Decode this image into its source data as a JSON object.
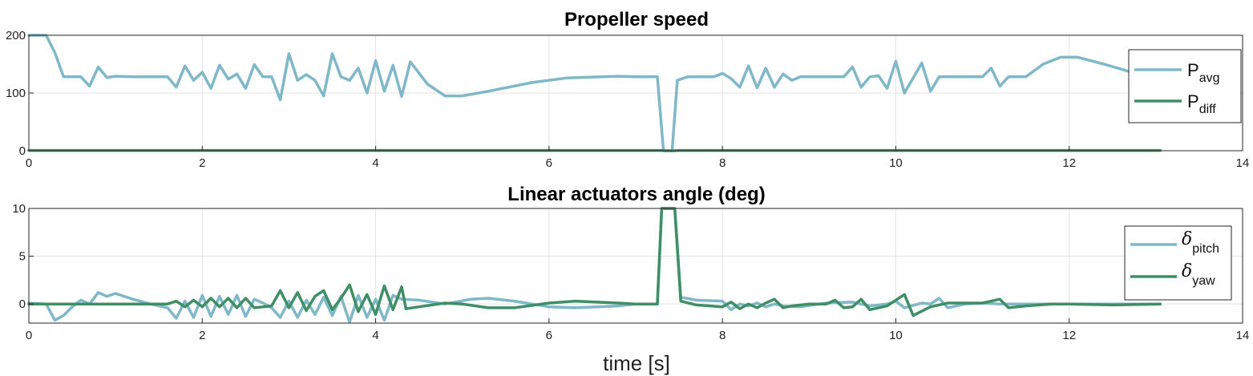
{
  "colors": {
    "series_light": "#7fb8c9",
    "series_dark": "#3f8f66",
    "grid": "#e3e3e3",
    "axes": "#262626"
  },
  "xlabel": "time [s]",
  "chart_data": [
    {
      "type": "line",
      "title": "Propeller speed",
      "xlim": [
        0,
        14
      ],
      "ylim": [
        0,
        200
      ],
      "xticks": [
        0,
        2,
        4,
        6,
        8,
        10,
        12,
        14
      ],
      "yticks": [
        0,
        100,
        200
      ],
      "grid": true,
      "legend_position": "right",
      "series": [
        {
          "name": "P",
          "subscript": "avg",
          "color": "#7fb8c9",
          "points": [
            [
              0,
              200
            ],
            [
              0.2,
              200
            ],
            [
              0.3,
              170
            ],
            [
              0.4,
              128
            ],
            [
              0.6,
              128
            ],
            [
              0.7,
              112
            ],
            [
              0.8,
              145
            ],
            [
              0.9,
              127
            ],
            [
              1.0,
              129
            ],
            [
              1.2,
              128
            ],
            [
              1.6,
              128
            ],
            [
              1.7,
              110
            ],
            [
              1.8,
              147
            ],
            [
              1.9,
              122
            ],
            [
              2.0,
              136
            ],
            [
              2.1,
              108
            ],
            [
              2.2,
              148
            ],
            [
              2.3,
              124
            ],
            [
              2.4,
              133
            ],
            [
              2.5,
              108
            ],
            [
              2.6,
              149
            ],
            [
              2.7,
              128
            ],
            [
              2.8,
              128
            ],
            [
              2.9,
              88
            ],
            [
              3.0,
              168
            ],
            [
              3.1,
              122
            ],
            [
              3.2,
              132
            ],
            [
              3.3,
              122
            ],
            [
              3.4,
              95
            ],
            [
              3.5,
              168
            ],
            [
              3.6,
              128
            ],
            [
              3.7,
              122
            ],
            [
              3.8,
              143
            ],
            [
              3.9,
              100
            ],
            [
              4.0,
              156
            ],
            [
              4.1,
              103
            ],
            [
              4.2,
              148
            ],
            [
              4.3,
              94
            ],
            [
              4.4,
              154
            ],
            [
              4.6,
              115
            ],
            [
              4.8,
              95
            ],
            [
              5.0,
              95
            ],
            [
              5.3,
              103
            ],
            [
              5.8,
              118
            ],
            [
              6.2,
              126
            ],
            [
              6.8,
              129
            ],
            [
              7.0,
              128
            ],
            [
              7.25,
              128
            ],
            [
              7.32,
              0
            ],
            [
              7.42,
              0
            ],
            [
              7.48,
              122
            ],
            [
              7.6,
              128
            ],
            [
              7.9,
              128
            ],
            [
              8.0,
              134
            ],
            [
              8.1,
              125
            ],
            [
              8.2,
              110
            ],
            [
              8.3,
              147
            ],
            [
              8.4,
              109
            ],
            [
              8.5,
              143
            ],
            [
              8.6,
              110
            ],
            [
              8.7,
              133
            ],
            [
              8.8,
              122
            ],
            [
              8.9,
              128
            ],
            [
              9.0,
              128
            ],
            [
              9.4,
              128
            ],
            [
              9.5,
              145
            ],
            [
              9.6,
              110
            ],
            [
              9.7,
              128
            ],
            [
              9.8,
              130
            ],
            [
              9.9,
              108
            ],
            [
              10.0,
              155
            ],
            [
              10.1,
              100
            ],
            [
              10.3,
              152
            ],
            [
              10.4,
              103
            ],
            [
              10.5,
              128
            ],
            [
              11.0,
              128
            ],
            [
              11.1,
              143
            ],
            [
              11.2,
              112
            ],
            [
              11.3,
              128
            ],
            [
              11.5,
              128
            ],
            [
              11.7,
              150
            ],
            [
              11.9,
              162
            ],
            [
              12.1,
              162
            ],
            [
              12.4,
              150
            ],
            [
              12.7,
              137
            ],
            [
              12.9,
              130
            ],
            [
              13.05,
              128
            ]
          ]
        },
        {
          "name": "P",
          "subscript": "diff",
          "color": "#3f8f66",
          "points": [
            [
              0,
              0.5
            ],
            [
              7.3,
              0.5
            ],
            [
              7.35,
              0
            ],
            [
              7.45,
              0
            ],
            [
              7.5,
              0.5
            ],
            [
              13.05,
              0.5
            ]
          ]
        }
      ]
    },
    {
      "type": "line",
      "title": "Linear actuators angle (deg)",
      "xlim": [
        0,
        14
      ],
      "ylim": [
        -2,
        10
      ],
      "xticks": [
        0,
        2,
        4,
        6,
        8,
        10,
        12,
        14
      ],
      "yticks": [
        0,
        5,
        10
      ],
      "grid": true,
      "legend_position": "right",
      "series": [
        {
          "name": "δ",
          "subscript": "pitch",
          "color": "#7fb8c9",
          "points": [
            [
              0,
              0.1
            ],
            [
              0.2,
              0
            ],
            [
              0.3,
              -1.7
            ],
            [
              0.4,
              -1.2
            ],
            [
              0.5,
              -0.3
            ],
            [
              0.6,
              0.4
            ],
            [
              0.7,
              0
            ],
            [
              0.8,
              1.2
            ],
            [
              0.9,
              0.8
            ],
            [
              1.0,
              1.1
            ],
            [
              1.2,
              0.5
            ],
            [
              1.4,
              0
            ],
            [
              1.6,
              -0.4
            ],
            [
              1.7,
              -1.5
            ],
            [
              1.8,
              0.3
            ],
            [
              1.9,
              -1.4
            ],
            [
              2.0,
              0.9
            ],
            [
              2.1,
              -1.3
            ],
            [
              2.2,
              0.8
            ],
            [
              2.3,
              -1.1
            ],
            [
              2.4,
              0.9
            ],
            [
              2.5,
              -1.3
            ],
            [
              2.6,
              0.5
            ],
            [
              2.7,
              0.1
            ],
            [
              2.8,
              -0.4
            ],
            [
              2.9,
              -1.4
            ],
            [
              3.0,
              0.3
            ],
            [
              3.1,
              -1.4
            ],
            [
              3.2,
              0.4
            ],
            [
              3.3,
              -1.1
            ],
            [
              3.4,
              0.7
            ],
            [
              3.5,
              -1.2
            ],
            [
              3.6,
              0.8
            ],
            [
              3.7,
              -1.9
            ],
            [
              3.8,
              0.9
            ],
            [
              3.9,
              -1.4
            ],
            [
              4.0,
              0.5
            ],
            [
              4.1,
              -1.7
            ],
            [
              4.2,
              0.9
            ],
            [
              4.3,
              0.5
            ],
            [
              4.5,
              0.4
            ],
            [
              4.8,
              0
            ],
            [
              5.1,
              0.5
            ],
            [
              5.3,
              0.6
            ],
            [
              5.6,
              0.3
            ],
            [
              6.0,
              -0.3
            ],
            [
              6.3,
              -0.4
            ],
            [
              6.8,
              -0.2
            ],
            [
              7.0,
              0
            ],
            [
              7.25,
              0
            ],
            [
              7.3,
              10
            ],
            [
              7.45,
              10
            ],
            [
              7.52,
              0.7
            ],
            [
              7.7,
              0.4
            ],
            [
              8.0,
              0.3
            ],
            [
              8.1,
              -0.6
            ],
            [
              8.2,
              0
            ],
            [
              8.3,
              -0.2
            ],
            [
              8.4,
              0.1
            ],
            [
              8.5,
              -0.3
            ],
            [
              8.6,
              0
            ],
            [
              8.7,
              -0.2
            ],
            [
              8.9,
              -0.3
            ],
            [
              9.2,
              0.1
            ],
            [
              9.5,
              0.2
            ],
            [
              9.7,
              -0.2
            ],
            [
              9.9,
              0
            ],
            [
              10.0,
              0.3
            ],
            [
              10.1,
              -0.4
            ],
            [
              10.3,
              0.1
            ],
            [
              10.4,
              0
            ],
            [
              10.5,
              0.6
            ],
            [
              10.6,
              -0.4
            ],
            [
              10.8,
              0
            ],
            [
              11.0,
              0.1
            ],
            [
              11.2,
              0
            ],
            [
              11.5,
              0
            ],
            [
              12.0,
              0
            ],
            [
              13.05,
              0
            ]
          ]
        },
        {
          "name": "δ",
          "subscript": "yaw",
          "color": "#3f8f66",
          "points": [
            [
              0,
              0
            ],
            [
              1.6,
              0
            ],
            [
              1.7,
              0.3
            ],
            [
              1.8,
              -0.3
            ],
            [
              1.9,
              0.4
            ],
            [
              2.0,
              -0.3
            ],
            [
              2.1,
              0.6
            ],
            [
              2.2,
              -0.3
            ],
            [
              2.3,
              0.6
            ],
            [
              2.4,
              -0.4
            ],
            [
              2.5,
              0.6
            ],
            [
              2.6,
              -0.4
            ],
            [
              2.8,
              -0.2
            ],
            [
              2.9,
              1.4
            ],
            [
              3.0,
              -0.4
            ],
            [
              3.1,
              1.2
            ],
            [
              3.2,
              -0.7
            ],
            [
              3.3,
              0.8
            ],
            [
              3.4,
              1.4
            ],
            [
              3.5,
              -0.6
            ],
            [
              3.6,
              0.6
            ],
            [
              3.7,
              2.0
            ],
            [
              3.8,
              -0.8
            ],
            [
              3.9,
              1.0
            ],
            [
              4.0,
              -1.1
            ],
            [
              4.1,
              1.9
            ],
            [
              4.2,
              -0.6
            ],
            [
              4.3,
              1.8
            ],
            [
              4.35,
              -0.5
            ],
            [
              4.5,
              -0.3
            ],
            [
              4.8,
              0.1
            ],
            [
              5.0,
              0
            ],
            [
              5.3,
              -0.4
            ],
            [
              5.6,
              -0.4
            ],
            [
              6.0,
              0.1
            ],
            [
              6.3,
              0.3
            ],
            [
              6.8,
              0.1
            ],
            [
              7.0,
              0
            ],
            [
              7.25,
              0
            ],
            [
              7.3,
              10
            ],
            [
              7.45,
              10
            ],
            [
              7.52,
              0.3
            ],
            [
              7.7,
              -0.1
            ],
            [
              8.0,
              -0.3
            ],
            [
              8.1,
              0.2
            ],
            [
              8.2,
              -0.5
            ],
            [
              8.3,
              0
            ],
            [
              8.4,
              -0.4
            ],
            [
              8.5,
              0.1
            ],
            [
              8.6,
              0.5
            ],
            [
              8.7,
              -0.4
            ],
            [
              8.8,
              -0.2
            ],
            [
              9.0,
              0
            ],
            [
              9.2,
              0
            ],
            [
              9.3,
              0.4
            ],
            [
              9.4,
              -0.4
            ],
            [
              9.5,
              -0.3
            ],
            [
              9.6,
              0.5
            ],
            [
              9.7,
              -0.6
            ],
            [
              9.9,
              -0.2
            ],
            [
              10.1,
              1.0
            ],
            [
              10.2,
              -1.2
            ],
            [
              10.4,
              -0.3
            ],
            [
              10.6,
              0.1
            ],
            [
              10.8,
              0.1
            ],
            [
              11.0,
              0.1
            ],
            [
              11.2,
              0.5
            ],
            [
              11.3,
              -0.4
            ],
            [
              11.5,
              -0.2
            ],
            [
              11.8,
              0
            ],
            [
              12.0,
              0
            ],
            [
              12.5,
              -0.1
            ],
            [
              13.05,
              0
            ]
          ]
        }
      ]
    }
  ]
}
